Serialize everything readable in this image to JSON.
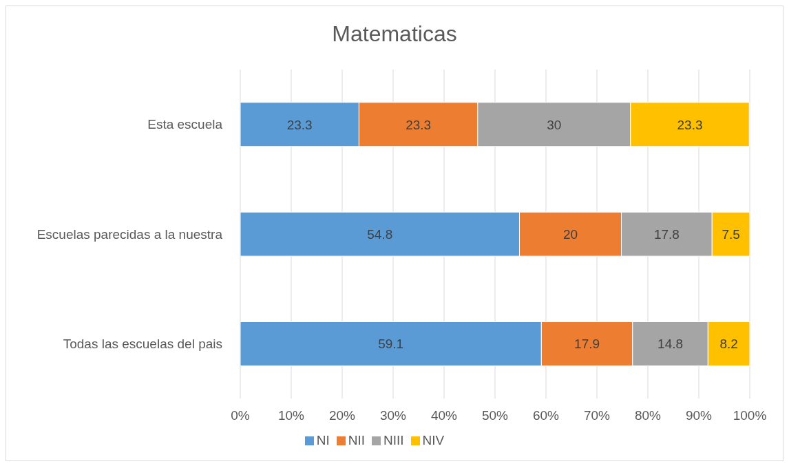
{
  "chart_data": {
    "type": "bar",
    "orientation": "horizontal",
    "stacked": true,
    "title": "Matematicas",
    "categories": [
      "Esta escuela",
      "Escuelas parecidas a la nuestra",
      "Todas las escuelas del pais"
    ],
    "series": [
      {
        "name": "NI",
        "color": "#5b9bd5",
        "values": [
          23.3,
          54.8,
          59.1
        ]
      },
      {
        "name": "NII",
        "color": "#ed7d31",
        "values": [
          23.3,
          20,
          17.9
        ]
      },
      {
        "name": "NIII",
        "color": "#a5a5a5",
        "values": [
          30,
          17.8,
          14.8
        ]
      },
      {
        "name": "NIV",
        "color": "#ffc000",
        "values": [
          23.3,
          7.5,
          8.2
        ]
      }
    ],
    "xlim": [
      0,
      100
    ],
    "xticks": [
      {
        "value": 0,
        "label": "0%"
      },
      {
        "value": 10,
        "label": "10%"
      },
      {
        "value": 20,
        "label": "20%"
      },
      {
        "value": 30,
        "label": "30%"
      },
      {
        "value": 40,
        "label": "40%"
      },
      {
        "value": 50,
        "label": "50%"
      },
      {
        "value": 60,
        "label": "60%"
      },
      {
        "value": 70,
        "label": "70%"
      },
      {
        "value": 80,
        "label": "80%"
      },
      {
        "value": 90,
        "label": "90%"
      },
      {
        "value": 100,
        "label": "100%"
      }
    ],
    "grid": "x",
    "legend": "bottom",
    "data_labels": true
  }
}
